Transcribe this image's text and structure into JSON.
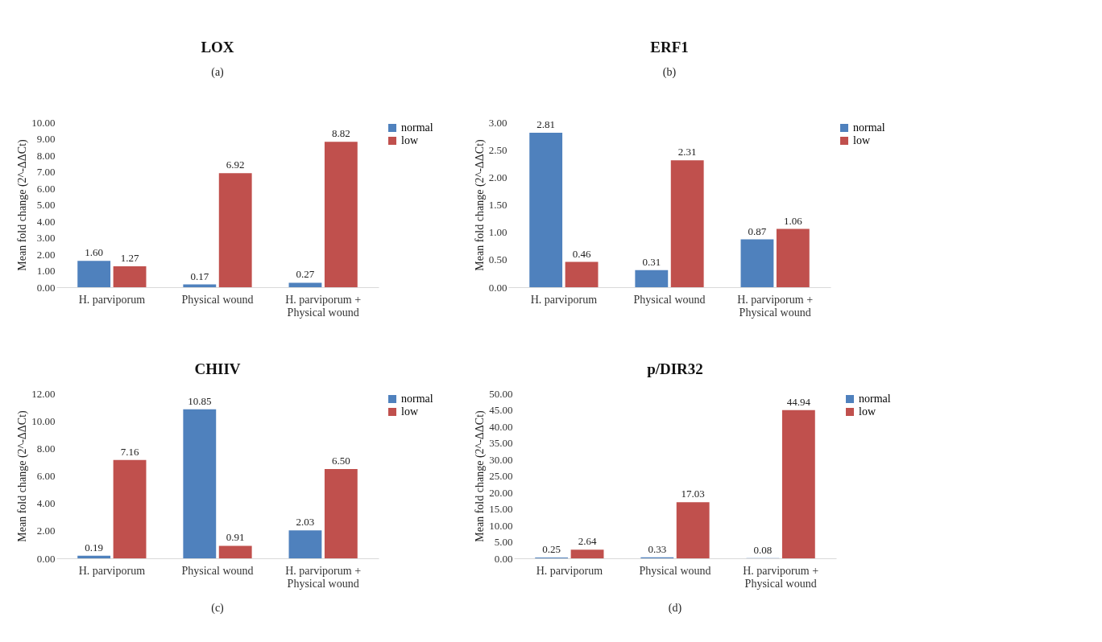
{
  "chart_data": [
    {
      "type": "bar",
      "title": "LOX",
      "annotations": [
        "(a)"
      ],
      "ylabel": "Mean fold change (2^-ΔΔCt)",
      "categories": [
        "H. parviporum",
        "Physical wound",
        "H. parviporum + Physical wound"
      ],
      "ylim": [
        0,
        10
      ],
      "yticks": [
        {
          "value": 0,
          "label": "0.00"
        },
        {
          "value": 1,
          "label": "1.00"
        },
        {
          "value": 2,
          "label": "2.00"
        },
        {
          "value": 3,
          "label": "3.00"
        },
        {
          "value": 4,
          "label": "4.00"
        },
        {
          "value": 5,
          "label": "5.00"
        },
        {
          "value": 6,
          "label": "6.00"
        },
        {
          "value": 7,
          "label": "7.00"
        },
        {
          "value": 8,
          "label": "8.00"
        },
        {
          "value": 9,
          "label": "9.00"
        },
        {
          "value": 10,
          "label": "10.00"
        }
      ],
      "legend": "right",
      "grid": false,
      "series": [
        {
          "name": "normal",
          "color": "#4f81bd",
          "values": [
            1.6,
            0.17,
            0.27
          ],
          "value_labels": [
            "1.60",
            "0.17",
            "0.27"
          ]
        },
        {
          "name": "low",
          "color": "#c0504d",
          "values": [
            1.27,
            6.92,
            8.82
          ],
          "value_labels": [
            "1.27",
            "6.92",
            "8.82"
          ]
        }
      ]
    },
    {
      "type": "bar",
      "title": "ERF1",
      "annotations": [
        "(b)"
      ],
      "ylabel": "Mean fold change (2^-ΔΔCt)",
      "categories": [
        "H. parviporum",
        "Physical wound",
        "H. parviporum + Physical wound"
      ],
      "ylim": [
        0,
        3
      ],
      "yticks": [
        {
          "value": 0,
          "label": "0.00"
        },
        {
          "value": 0.5,
          "label": "0.50"
        },
        {
          "value": 1,
          "label": "1.00"
        },
        {
          "value": 1.5,
          "label": "1.50"
        },
        {
          "value": 2,
          "label": "2.00"
        },
        {
          "value": 2.5,
          "label": "2.50"
        },
        {
          "value": 3,
          "label": "3.00"
        }
      ],
      "legend": "right",
      "grid": false,
      "series": [
        {
          "name": "normal",
          "color": "#4f81bd",
          "values": [
            2.81,
            0.31,
            0.87
          ],
          "value_labels": [
            "2.81",
            "0.31",
            "0.87"
          ]
        },
        {
          "name": "low",
          "color": "#c0504d",
          "values": [
            0.46,
            2.31,
            1.06
          ],
          "value_labels": [
            "0.46",
            "2.31",
            "1.06"
          ]
        }
      ]
    },
    {
      "type": "bar",
      "title": "CHIIV",
      "annotations": [
        "(c)"
      ],
      "ylabel": "Mean fold change (2^-ΔΔCt)",
      "categories": [
        "H. parviporum",
        "Physical wound",
        "H. parviporum + Physical wound"
      ],
      "ylim": [
        0,
        12
      ],
      "yticks": [
        {
          "value": 0,
          "label": "0.00"
        },
        {
          "value": 2,
          "label": "2.00"
        },
        {
          "value": 4,
          "label": "4.00"
        },
        {
          "value": 6,
          "label": "6.00"
        },
        {
          "value": 8,
          "label": "8.00"
        },
        {
          "value": 10,
          "label": "10.00"
        },
        {
          "value": 12,
          "label": "12.00"
        }
      ],
      "legend": "right",
      "grid": false,
      "series": [
        {
          "name": "normal",
          "color": "#4f81bd",
          "values": [
            0.19,
            10.85,
            2.03
          ],
          "value_labels": [
            "0.19",
            "10.85",
            "2.03"
          ]
        },
        {
          "name": "low",
          "color": "#c0504d",
          "values": [
            7.16,
            0.91,
            6.5
          ],
          "value_labels": [
            "7.16",
            "0.91",
            "6.50"
          ]
        }
      ]
    },
    {
      "type": "bar",
      "title": "p/DIR32",
      "annotations": [
        "(d)"
      ],
      "ylabel": "Mean fold change (2^-ΔΔCt)",
      "categories": [
        "H. parviporum",
        "Physical wound",
        "H. parviporum + Physical wound"
      ],
      "ylim": [
        0,
        50
      ],
      "yticks": [
        {
          "value": 0,
          "label": "0.00"
        },
        {
          "value": 5,
          "label": "5.00"
        },
        {
          "value": 10,
          "label": "10.00"
        },
        {
          "value": 15,
          "label": "15.00"
        },
        {
          "value": 20,
          "label": "20.00"
        },
        {
          "value": 25,
          "label": "25.00"
        },
        {
          "value": 30,
          "label": "30.00"
        },
        {
          "value": 35,
          "label": "35.00"
        },
        {
          "value": 40,
          "label": "40.00"
        },
        {
          "value": 45,
          "label": "45.00"
        },
        {
          "value": 50,
          "label": "50.00"
        }
      ],
      "legend": "right",
      "grid": false,
      "series": [
        {
          "name": "normal",
          "color": "#4f81bd",
          "values": [
            0.25,
            0.33,
            0.08
          ],
          "value_labels": [
            "0.25",
            "0.33",
            "0.08"
          ]
        },
        {
          "name": "low",
          "color": "#c0504d",
          "values": [
            2.64,
            17.03,
            44.94
          ],
          "value_labels": [
            "2.64",
            "17.03",
            "44.94"
          ]
        }
      ]
    }
  ]
}
